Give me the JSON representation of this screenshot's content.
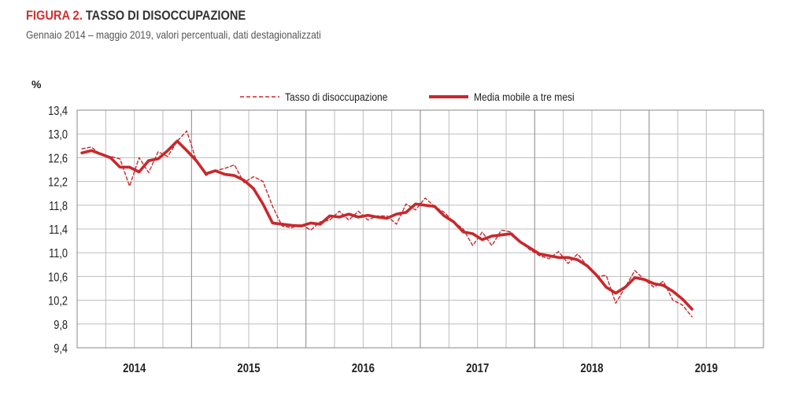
{
  "figure": {
    "number": "FIGURA 2.",
    "title": "TASSO DI DISOCCUPAZIONE",
    "subtitle": "Gennaio 2014 – maggio 2019, valori percentuali, dati destagionalizzati"
  },
  "colors": {
    "series": "#c8282d",
    "grid": "#bdbdbd",
    "year_divider": "#9a9a9a",
    "axis_text": "#222222",
    "frame": "#888888"
  },
  "chart_data": {
    "type": "line",
    "title": "TASSO DI DISOCCUPAZIONE",
    "subtitle": "Gennaio 2014 – maggio 2019, valori percentuali, dati destagionalizzati",
    "ylabel": "%",
    "xlabel": "",
    "ylim": [
      9.4,
      13.4
    ],
    "yticks": [
      "13,4",
      "13,0",
      "12,6",
      "12,2",
      "11,8",
      "11,4",
      "11,0",
      "10,6",
      "10,2",
      "9,8",
      "9,4"
    ],
    "xtick_labels": [
      "2014",
      "2015",
      "2016",
      "2017",
      "2018",
      "2019"
    ],
    "grid": true,
    "legend_position": "top",
    "x": [
      "2014-01",
      "2014-02",
      "2014-03",
      "2014-04",
      "2014-05",
      "2014-06",
      "2014-07",
      "2014-08",
      "2014-09",
      "2014-10",
      "2014-11",
      "2014-12",
      "2015-01",
      "2015-02",
      "2015-03",
      "2015-04",
      "2015-05",
      "2015-06",
      "2015-07",
      "2015-08",
      "2015-09",
      "2015-10",
      "2015-11",
      "2015-12",
      "2016-01",
      "2016-02",
      "2016-03",
      "2016-04",
      "2016-05",
      "2016-06",
      "2016-07",
      "2016-08",
      "2016-09",
      "2016-10",
      "2016-11",
      "2016-12",
      "2017-01",
      "2017-02",
      "2017-03",
      "2017-04",
      "2017-05",
      "2017-06",
      "2017-07",
      "2017-08",
      "2017-09",
      "2017-10",
      "2017-11",
      "2017-12",
      "2018-01",
      "2018-02",
      "2018-03",
      "2018-04",
      "2018-05",
      "2018-06",
      "2018-07",
      "2018-08",
      "2018-09",
      "2018-10",
      "2018-11",
      "2018-12",
      "2019-01",
      "2019-02",
      "2019-03",
      "2019-04",
      "2019-05"
    ],
    "series": [
      {
        "name": "Tasso di disoccupazione",
        "style": "dashed",
        "values": [
          12.75,
          12.78,
          12.65,
          12.62,
          12.58,
          12.12,
          12.6,
          12.35,
          12.7,
          12.62,
          12.88,
          13.05,
          12.55,
          12.3,
          12.38,
          12.42,
          12.48,
          12.18,
          12.28,
          12.2,
          11.78,
          11.45,
          11.42,
          11.48,
          11.38,
          11.52,
          11.55,
          11.7,
          11.55,
          11.7,
          11.55,
          11.62,
          11.62,
          11.48,
          11.82,
          11.72,
          11.92,
          11.78,
          11.68,
          11.52,
          11.4,
          11.12,
          11.35,
          11.12,
          11.38,
          11.35,
          11.18,
          11.05,
          10.95,
          10.9,
          11.02,
          10.82,
          10.98,
          10.78,
          10.6,
          10.62,
          10.15,
          10.42,
          10.7,
          10.55,
          10.42,
          10.52,
          10.2,
          10.12,
          9.92
        ]
      },
      {
        "name": "Media mobile a tre mesi",
        "style": "solid",
        "values": [
          12.68,
          12.72,
          12.66,
          12.6,
          12.44,
          12.44,
          12.36,
          12.55,
          12.58,
          12.72,
          12.88,
          12.72,
          12.55,
          12.33,
          12.38,
          12.32,
          12.3,
          12.22,
          12.08,
          11.82,
          11.5,
          11.48,
          11.46,
          11.45,
          11.5,
          11.48,
          11.62,
          11.6,
          11.65,
          11.6,
          11.63,
          11.6,
          11.58,
          11.65,
          11.68,
          11.82,
          11.8,
          11.78,
          11.62,
          11.52,
          11.35,
          11.32,
          11.22,
          11.28,
          11.3,
          11.32,
          11.18,
          11.08,
          10.98,
          10.95,
          10.92,
          10.92,
          10.88,
          10.78,
          10.62,
          10.42,
          10.32,
          10.42,
          10.58,
          10.55,
          10.48,
          10.45,
          10.35,
          10.22,
          10.05
        ]
      }
    ]
  }
}
